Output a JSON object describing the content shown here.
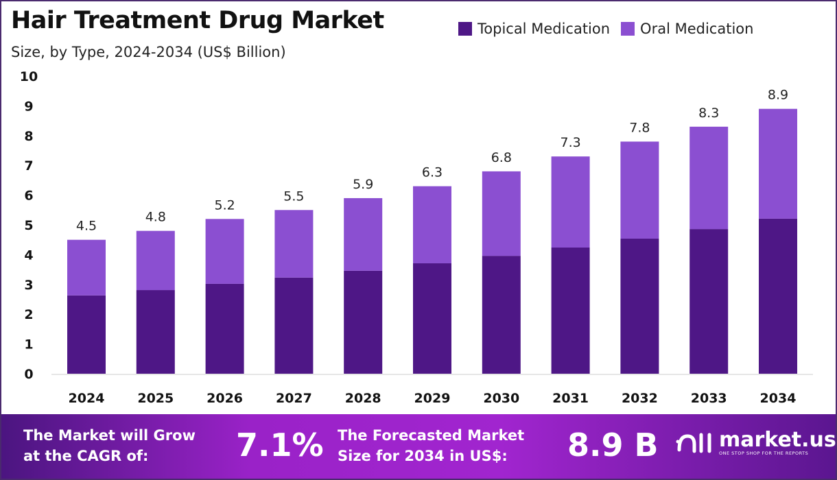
{
  "chart_data": {
    "type": "bar",
    "stacked": true,
    "title": "Hair Treatment Drug Market",
    "subtitle": "Size, by Type, 2024-2034 (US$ Billion)",
    "categories": [
      "2024",
      "2025",
      "2026",
      "2027",
      "2028",
      "2029",
      "2030",
      "2031",
      "2032",
      "2033",
      "2034"
    ],
    "series": [
      {
        "name": "Topical Medication",
        "color": "#4e1786",
        "values": [
          2.63,
          2.81,
          3.02,
          3.23,
          3.46,
          3.71,
          3.96,
          4.24,
          4.54,
          4.86,
          5.21
        ]
      },
      {
        "name": "Oral Medication",
        "color": "#8b4fd1",
        "values": [
          1.87,
          1.99,
          2.18,
          2.27,
          2.44,
          2.59,
          2.84,
          3.06,
          3.26,
          3.44,
          3.69
        ]
      }
    ],
    "totals": [
      "4.5",
      "4.8",
      "5.2",
      "5.5",
      "5.9",
      "6.3",
      "6.8",
      "7.3",
      "7.8",
      "8.3",
      "8.9"
    ],
    "yticks": [
      "0",
      "1",
      "2",
      "3",
      "4",
      "5",
      "6",
      "7",
      "8",
      "9",
      "10"
    ],
    "ylim": [
      0,
      10
    ],
    "grid": false,
    "legend_position": "top-right"
  },
  "footer": {
    "cagr_label_1": "The Market will Grow",
    "cagr_label_2": "at the CAGR of:",
    "cagr_value": "7.1%",
    "forecast_label_1": "The Forecasted Market",
    "forecast_label_2": "Size for 2034 in US$:",
    "forecast_value": "8.9 B",
    "brand": "market.us",
    "tagline": "ONE STOP SHOP FOR THE REPORTS"
  }
}
